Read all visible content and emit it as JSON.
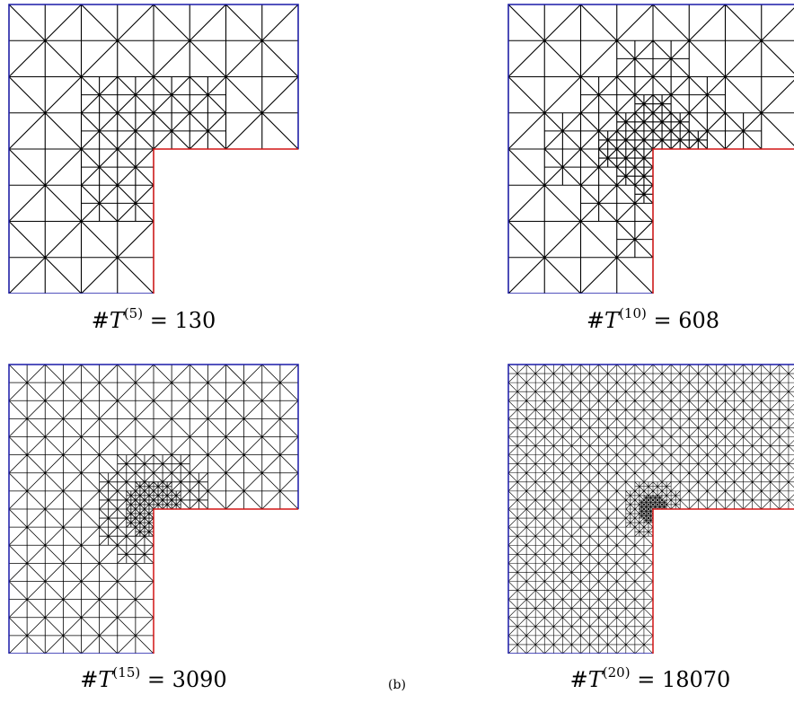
{
  "meshes": [
    {
      "hash": "#",
      "symbol": "T",
      "superscript": "(5)",
      "equals": "=",
      "count": "130",
      "depth": 2
    },
    {
      "hash": "#",
      "symbol": "T",
      "superscript": "(10)",
      "equals": "=",
      "count": "608",
      "depth": 3
    },
    {
      "hash": "#",
      "symbol": "T",
      "superscript": "(15)",
      "equals": "=",
      "count": "3090",
      "depth": 4
    },
    {
      "hash": "#",
      "symbol": "T",
      "superscript": "(20)",
      "equals": "=",
      "count": "18070",
      "depth": 5
    }
  ],
  "footer_label": "(b)",
  "colors": {
    "mesh": "#000000",
    "dirichlet_boundary": "#1a1aa8",
    "neumann_boundary": "#d21414"
  }
}
